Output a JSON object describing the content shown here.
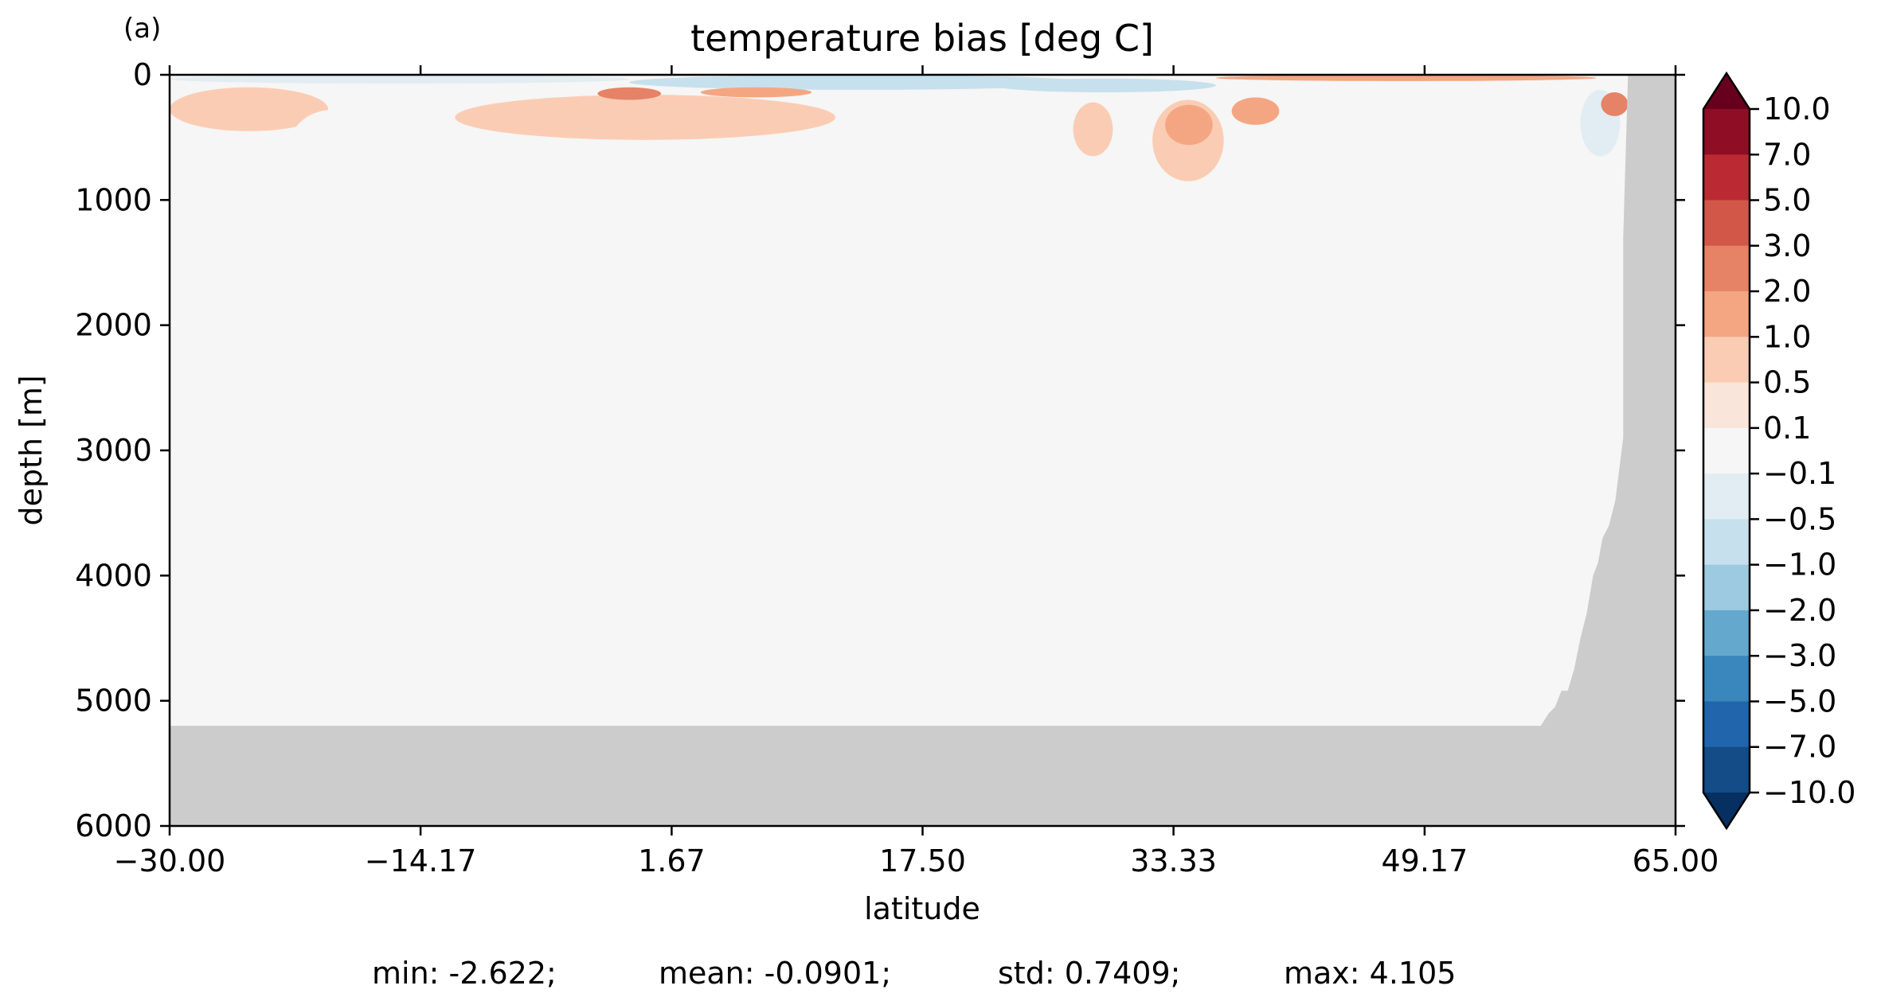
{
  "panel_label": "(a)",
  "colors": {
    "land": "#cccccc",
    "neutral": "#f5f6f5",
    "levels": [
      "#053061",
      "#134c87",
      "#2166ac",
      "#3a87bd",
      "#64a8cd",
      "#9dcae1",
      "#c7e0ed",
      "#e1edf3",
      "#f5f6f5",
      "#f9e5da",
      "#fbccb4",
      "#f4a683",
      "#e68266",
      "#d25749",
      "#bb2a33",
      "#8f0d25",
      "#67001f"
    ]
  },
  "stats": {
    "min": "min: -2.622;",
    "mean": "mean: -0.0901;",
    "std": "std: 0.7409;",
    "max": "max: 4.105"
  },
  "chart_data": {
    "type": "heatmap",
    "title": "temperature bias [deg C]",
    "xlabel": "latitude",
    "ylabel": "depth [m]",
    "xlim": [
      -30.0,
      65.0
    ],
    "ylim": [
      6000,
      0
    ],
    "x_ticks": [
      -30.0,
      -14.17,
      1.67,
      17.5,
      33.33,
      49.17,
      65.0
    ],
    "x_tick_labels": [
      "−30.00",
      "−14.17",
      "1.67",
      "17.50",
      "33.33",
      "49.17",
      "65.00"
    ],
    "y_ticks": [
      0,
      1000,
      2000,
      3000,
      4000,
      5000,
      6000
    ],
    "y_tick_labels": [
      "0",
      "1000",
      "2000",
      "3000",
      "4000",
      "5000",
      "6000"
    ],
    "colorbar": {
      "levels": [
        -10.0,
        -7.0,
        -5.0,
        -3.0,
        -2.0,
        -1.0,
        -0.5,
        -0.1,
        0.1,
        0.5,
        1.0,
        2.0,
        3.0,
        5.0,
        7.0,
        10.0
      ],
      "tick_labels": [
        "10.0",
        "7.0",
        "5.0",
        "3.0",
        "2.0",
        "1.0",
        "0.5",
        "0.1",
        "−0.1",
        "−0.5",
        "−1.0",
        "−2.0",
        "−3.0",
        "−5.0",
        "−7.0",
        "−10.0"
      ],
      "extend": "both"
    },
    "bathymetry": [
      [
        -30.0,
        5200
      ],
      [
        56.5,
        5200
      ],
      [
        57.0,
        5100
      ],
      [
        57.4,
        5050
      ],
      [
        57.8,
        4920
      ],
      [
        58.2,
        4920
      ],
      [
        58.6,
        4750
      ],
      [
        59.0,
        4500
      ],
      [
        59.4,
        4300
      ],
      [
        59.8,
        4000
      ],
      [
        60.1,
        3900
      ],
      [
        60.4,
        3700
      ],
      [
        60.8,
        3600
      ],
      [
        61.2,
        3400
      ],
      [
        61.6,
        3000
      ],
      [
        61.7,
        2900
      ],
      [
        61.7,
        1300
      ],
      [
        62.0,
        0
      ],
      [
        65.0,
        0
      ],
      [
        65.0,
        6000
      ],
      [
        -30.0,
        6000
      ]
    ],
    "bias_patches": [
      {
        "x": [
          -30.0,
          -1.0
        ],
        "depth": [
          0,
          70
        ],
        "value": -0.5
      },
      {
        "x": [
          -1.0,
          28.0
        ],
        "depth": [
          0,
          120
        ],
        "value": -1.0
      },
      {
        "x": [
          22.0,
          36.0
        ],
        "depth": [
          30,
          140
        ],
        "value": -1.0
      },
      {
        "x": [
          36.0,
          60.0
        ],
        "depth": [
          0,
          50
        ],
        "value": 1.0
      },
      {
        "x": [
          -30.0,
          -20.0
        ],
        "depth": [
          100,
          450
        ],
        "value": 0.5
      },
      {
        "x": [
          -22.5,
          -17.0
        ],
        "depth": [
          280,
          900
        ],
        "value": -0.1
      },
      {
        "x": [
          -12.0,
          12.0
        ],
        "depth": [
          160,
          520
        ],
        "value": 0.5
      },
      {
        "x": [
          -3.0,
          1.0
        ],
        "depth": [
          100,
          200
        ],
        "value": 2.0
      },
      {
        "x": [
          3.5,
          10.5
        ],
        "depth": [
          100,
          180
        ],
        "value": 1.0
      },
      {
        "x": [
          21.0,
          24.0
        ],
        "depth": [
          180,
          620
        ],
        "value": -0.1
      },
      {
        "x": [
          27.0,
          29.5
        ],
        "depth": [
          220,
          650
        ],
        "value": 0.5
      },
      {
        "x": [
          32.0,
          36.5
        ],
        "depth": [
          200,
          850
        ],
        "value": 0.5
      },
      {
        "x": [
          32.8,
          35.8
        ],
        "depth": [
          240,
          560
        ],
        "value": 1.0
      },
      {
        "x": [
          37.0,
          40.0
        ],
        "depth": [
          180,
          400
        ],
        "value": 1.0
      },
      {
        "x": [
          59.0,
          61.5
        ],
        "depth": [
          120,
          650
        ],
        "value": -0.5
      },
      {
        "x": [
          60.3,
          62.0
        ],
        "depth": [
          140,
          330
        ],
        "value": 2.0
      }
    ]
  }
}
